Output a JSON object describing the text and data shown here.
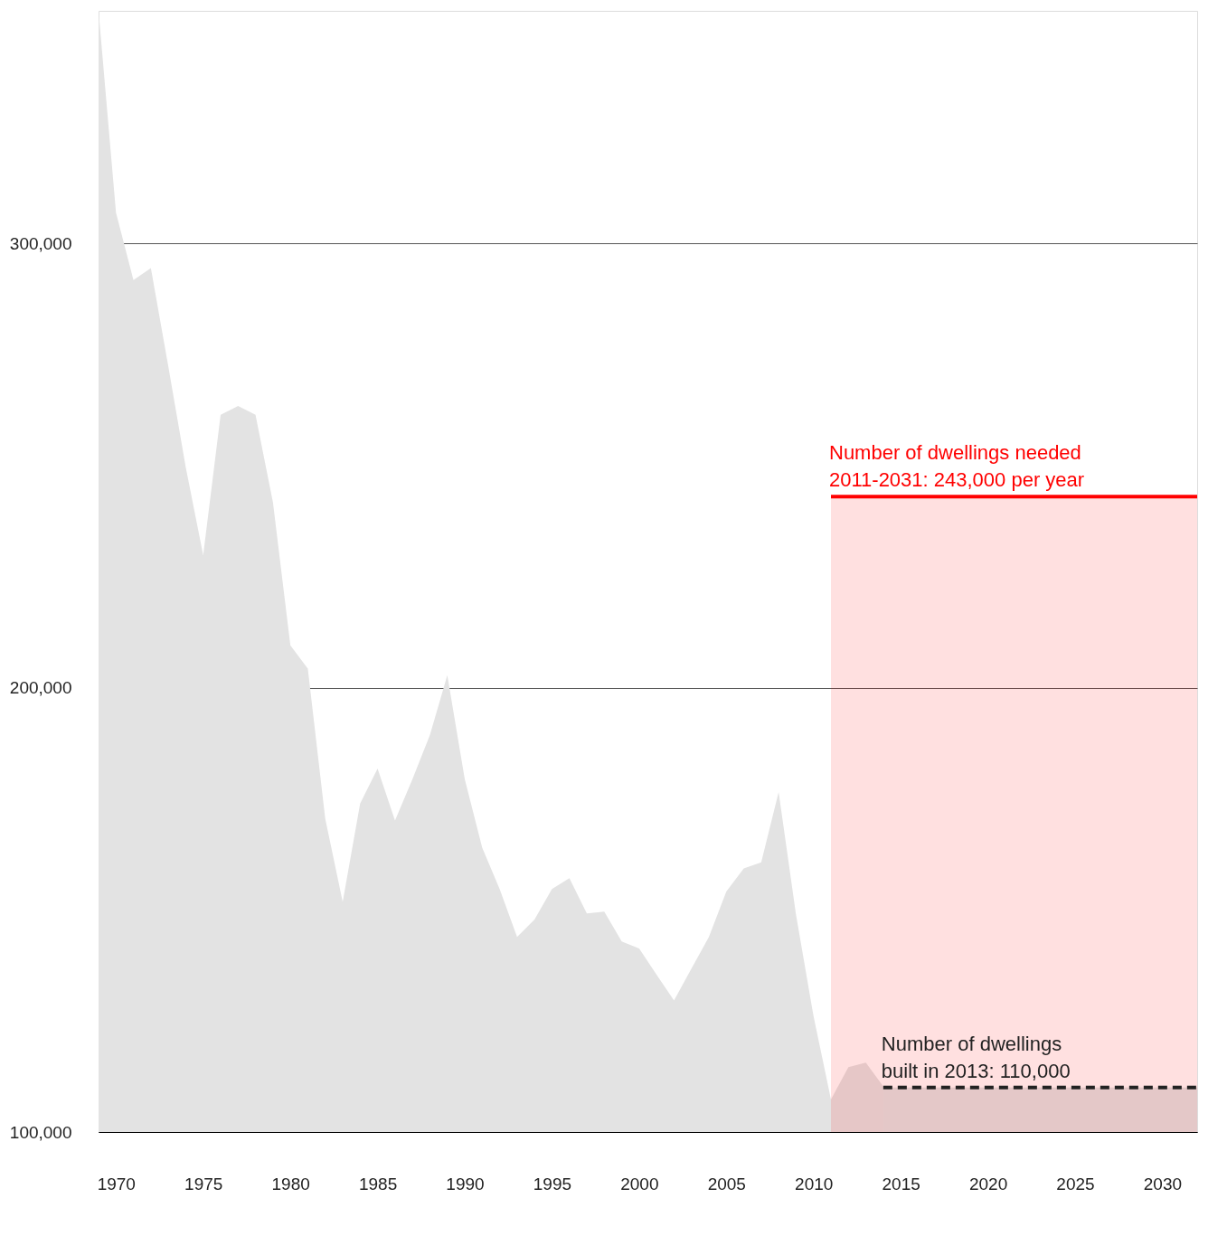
{
  "chart_data": {
    "type": "area",
    "ylim": [
      100000,
      352300
    ],
    "yticks": [
      {
        "value": 100000,
        "label": "100,000"
      },
      {
        "value": 200000,
        "label": "200,000"
      },
      {
        "value": 300000,
        "label": "300,000"
      }
    ],
    "xlim": [
      1969,
      2032
    ],
    "xticks": [
      1970,
      1975,
      1980,
      1985,
      1990,
      1995,
      2000,
      2005,
      2010,
      2015,
      2020,
      2025,
      2030
    ],
    "grid": "y",
    "series": [
      {
        "color": "#e3e3e3",
        "x": [
          1969,
          1970,
          1971,
          1972,
          1973,
          1974,
          1975,
          1976,
          1977,
          1978,
          1979,
          1980,
          1981,
          1982,
          1983,
          1984,
          1985,
          1986,
          1987,
          1988,
          1989,
          1990,
          1991,
          1992,
          1993,
          1994,
          1995,
          1996,
          1997,
          1998,
          1999,
          2000,
          2001,
          2002,
          2003,
          2004,
          2005,
          2006,
          2007,
          2008,
          2009,
          2010,
          2011,
          2012,
          2013,
          2014
        ],
        "values": [
          352300,
          306900,
          291700,
          294400,
          272300,
          249600,
          229800,
          261400,
          263400,
          261400,
          241700,
          209500,
          204300,
          170500,
          151800,
          173900,
          181800,
          170100,
          179400,
          189300,
          202800,
          179400,
          164000,
          154700,
          143900,
          147800,
          154700,
          157100,
          149200,
          149600,
          142900,
          141300,
          135400,
          129600,
          136800,
          143900,
          154100,
          159300,
          160700,
          176500,
          148800,
          126100,
          107300,
          114600,
          115600,
          110300
        ]
      },
      {
        "color": "#ff0000",
        "line_style": "solid",
        "x": [
          2011,
          2032
        ],
        "values": [
          243000,
          243000
        ]
      },
      {
        "color": "#222222",
        "line_style": "dashed",
        "x": [
          2014,
          2032
        ],
        "values": [
          110000,
          110000
        ]
      }
    ],
    "annotations": [
      {
        "text": "Number of dwellings needed\n2011-2031: 243,000 per year",
        "x": 2011,
        "y": 243000
      },
      {
        "text": "Number of dwellings\nbuilt in 2013: 110,000",
        "x": 2014,
        "y": 110000
      }
    ]
  }
}
